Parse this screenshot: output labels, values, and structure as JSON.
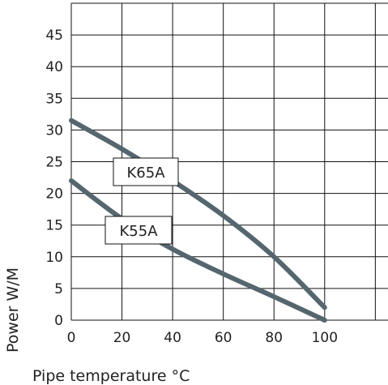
{
  "chart_data": {
    "type": "line",
    "xlabel": "Pipe temperature °C",
    "ylabel": "Power W/M",
    "xlim": [
      0,
      125
    ],
    "ylim": [
      0,
      50
    ],
    "x_ticks": [
      0,
      20,
      40,
      60,
      80,
      100
    ],
    "y_ticks": [
      0,
      5,
      10,
      15,
      20,
      25,
      30,
      35,
      40,
      45
    ],
    "grid": true,
    "line_color": "#55666f",
    "series": [
      {
        "name": "K65A",
        "x": [
          0,
          20,
          40,
          60,
          80,
          100
        ],
        "y": [
          31.5,
          27,
          22,
          16.5,
          10,
          2
        ]
      },
      {
        "name": "K55A",
        "x": [
          0,
          20,
          40,
          60,
          80,
          100
        ],
        "y": [
          22,
          16,
          11.2,
          7.3,
          3.7,
          0
        ]
      }
    ],
    "annotations": [
      {
        "text": "K65A",
        "series": "K65A"
      },
      {
        "text": "K55A",
        "series": "K55A"
      }
    ]
  }
}
